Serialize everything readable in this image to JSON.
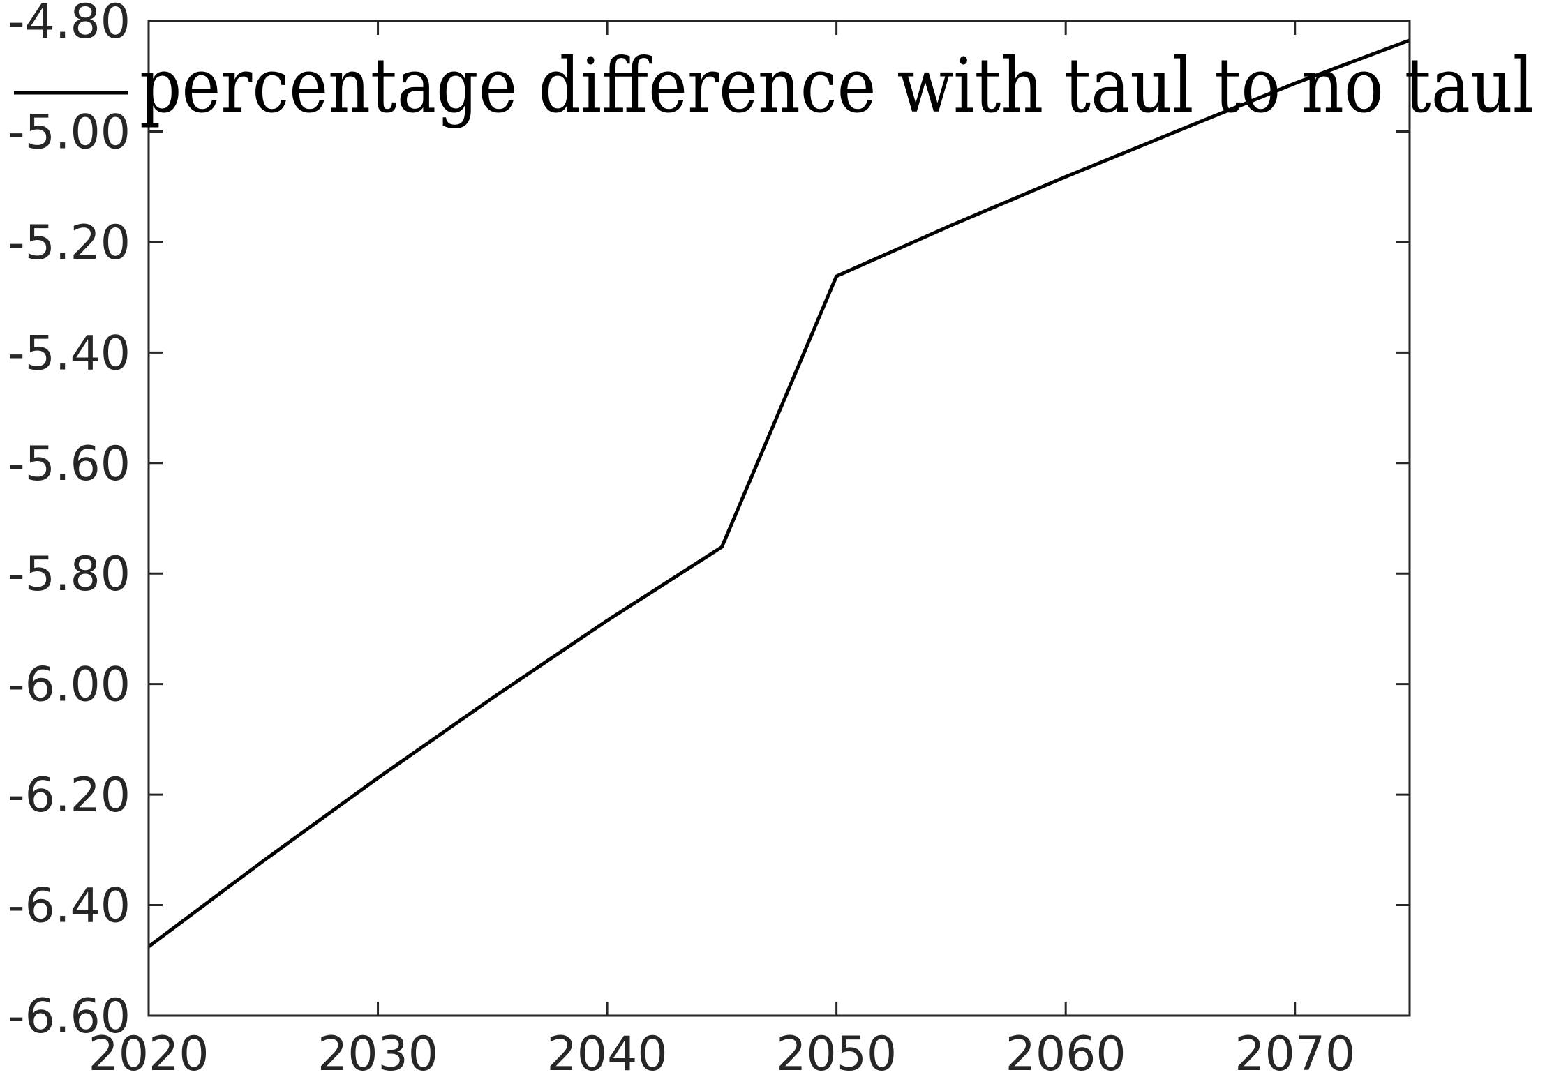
{
  "chart_data": {
    "type": "line",
    "title": "",
    "xlabel": "",
    "ylabel": "",
    "xlim": [
      2020,
      2075
    ],
    "ylim": [
      -6.6,
      -4.8
    ],
    "x_ticks": [
      2020,
      2030,
      2040,
      2050,
      2060,
      2070
    ],
    "x_tick_labels": [
      "2020",
      "2030",
      "2040",
      "2050",
      "2060",
      "2070"
    ],
    "y_ticks": [
      -4.8,
      -5.0,
      -5.2,
      -5.4,
      -5.6,
      -5.8,
      -6.0,
      -6.2,
      -6.4,
      -6.6
    ],
    "y_tick_labels": [
      "-4.80",
      "-5.00",
      "-5.20",
      "-5.40",
      "-5.60",
      "-5.80",
      "-6.00",
      "-6.20",
      "-6.40",
      "-6.60"
    ],
    "grid": false,
    "legend_position": "top",
    "series": [
      {
        "name": "percentage difference with taul to no taul",
        "color": "#000000",
        "x": [
          2020,
          2025,
          2030,
          2035,
          2040,
          2045,
          2050,
          2055,
          2060,
          2065,
          2070,
          2075
        ],
        "y": [
          -6.475,
          -6.32,
          -6.17,
          -6.025,
          -5.885,
          -5.752,
          -5.262,
          -5.17,
          -5.082,
          -4.997,
          -4.913,
          -4.835
        ]
      }
    ]
  }
}
